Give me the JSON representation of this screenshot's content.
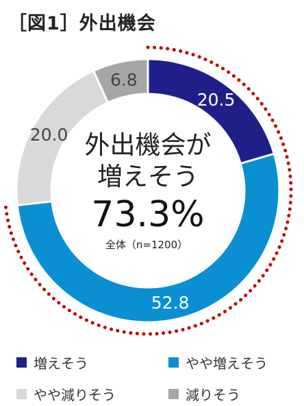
{
  "title": "［図1］外出機会",
  "chart_data": {
    "type": "pie",
    "donut": true,
    "categories": [
      "増えそう",
      "やや増えそう",
      "やや減りそう",
      "減りそう"
    ],
    "values": [
      20.5,
      52.8,
      20.0,
      6.8
    ],
    "colors": [
      "#1f1f8a",
      "#0a8fd3",
      "#d9d9d9",
      "#a6a6a6"
    ],
    "label_colors": [
      "#ffffff",
      "#ffffff",
      "#444444",
      "#444444"
    ],
    "center_text": {
      "line1": "外出機会が",
      "line2": "増えそう",
      "value": "73.3%",
      "note": "全体（n=1200）"
    },
    "highlight": "dotted arc around 増えそう and やや増えそう",
    "highlight_color": "#c00000",
    "legend_position": "bottom"
  }
}
